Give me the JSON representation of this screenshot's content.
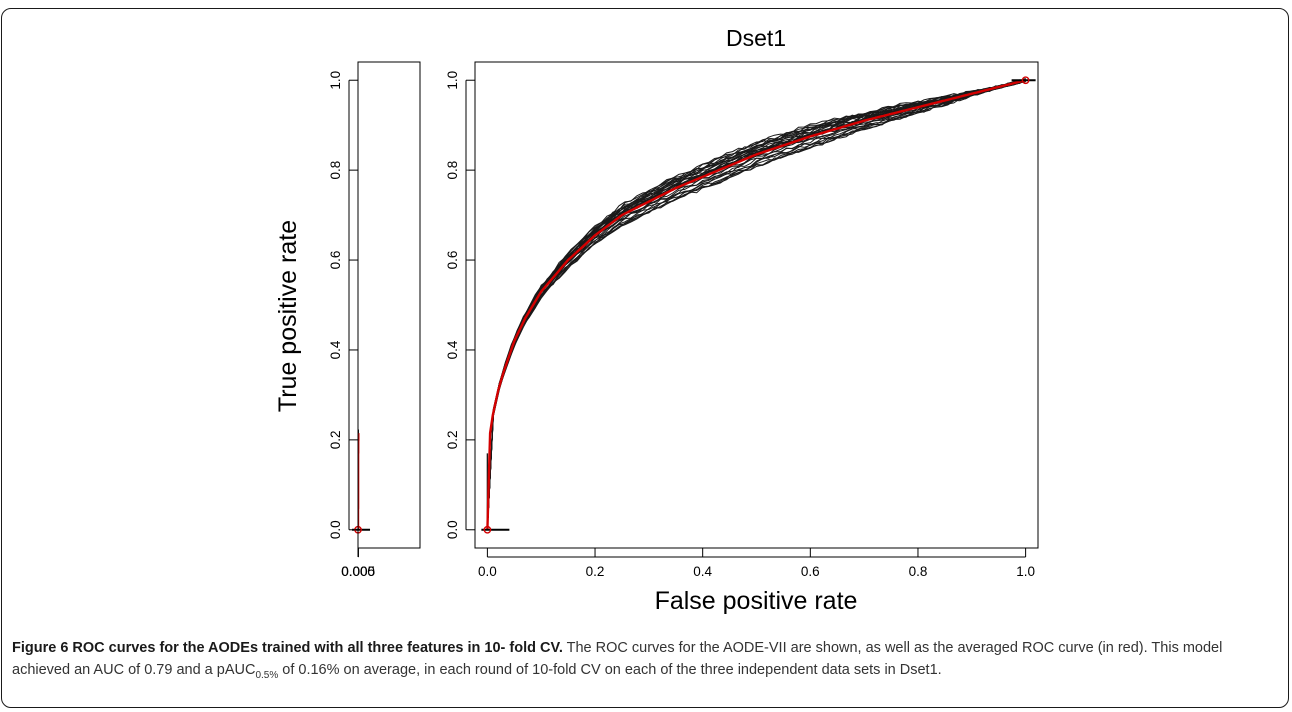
{
  "chart_data": {
    "type": "line",
    "title": "Dset1",
    "xlabel": "False positive rate",
    "ylabel": "True positive rate",
    "panels": [
      {
        "name": "inset",
        "xlim": [
          0,
          0.005
        ],
        "ylim": [
          0,
          1.0
        ],
        "x_ticks": [
          0.0,
          0.001,
          0.002,
          0.003,
          0.004,
          0.005
        ],
        "x_tick_labels": [
          "0.000",
          "",
          "",
          "",
          "",
          "0.005"
        ],
        "y_ticks": [
          0.0,
          0.2,
          0.4,
          0.6,
          0.8,
          1.0
        ],
        "y_tick_labels": [
          "0.0",
          "0.2",
          "0.4",
          "0.6",
          "0.8",
          "1.0"
        ]
      },
      {
        "name": "main",
        "xlim": [
          0,
          1.0
        ],
        "ylim": [
          0,
          1.0
        ],
        "x_ticks": [
          0.0,
          0.2,
          0.4,
          0.6,
          0.8,
          1.0
        ],
        "x_tick_labels": [
          "0.0",
          "0.2",
          "0.4",
          "0.6",
          "0.8",
          "1.0"
        ],
        "y_ticks": [
          0.0,
          0.2,
          0.4,
          0.6,
          0.8,
          1.0
        ],
        "y_tick_labels": [
          "0.0",
          "0.2",
          "0.4",
          "0.6",
          "0.8",
          "1.0"
        ]
      }
    ],
    "series": [
      {
        "color": "#d40000",
        "x": [
          0,
          0.002,
          0.005,
          0.01,
          0.02,
          0.03,
          0.05,
          0.07,
          0.1,
          0.15,
          0.2,
          0.25,
          0.3,
          0.35,
          0.4,
          0.5,
          0.6,
          0.7,
          0.8,
          0.9,
          1.0
        ],
        "y": [
          0,
          0.165,
          0.215,
          0.255,
          0.31,
          0.35,
          0.42,
          0.47,
          0.53,
          0.6,
          0.655,
          0.7,
          0.73,
          0.76,
          0.785,
          0.835,
          0.875,
          0.91,
          0.94,
          0.97,
          1.0
        ]
      },
      {
        "color": "#1a1a1a",
        "count": 30,
        "y_spread": 0.03
      }
    ]
  },
  "caption": {
    "figure_label": "Figure 6 ROC curves for the AODEs trained with all three features in 10- fold CV.",
    "text_before_sub": " The ROC curves for the AODE-VII are shown, as well as the averaged ROC curve (in red). This model achieved an AUC of 0.79 and a pAUC",
    "subscript": "0.5%",
    "text_after_sub": " of 0.16% on average, in each round of 10-fold CV on each of the three independent data sets in Dset1."
  }
}
